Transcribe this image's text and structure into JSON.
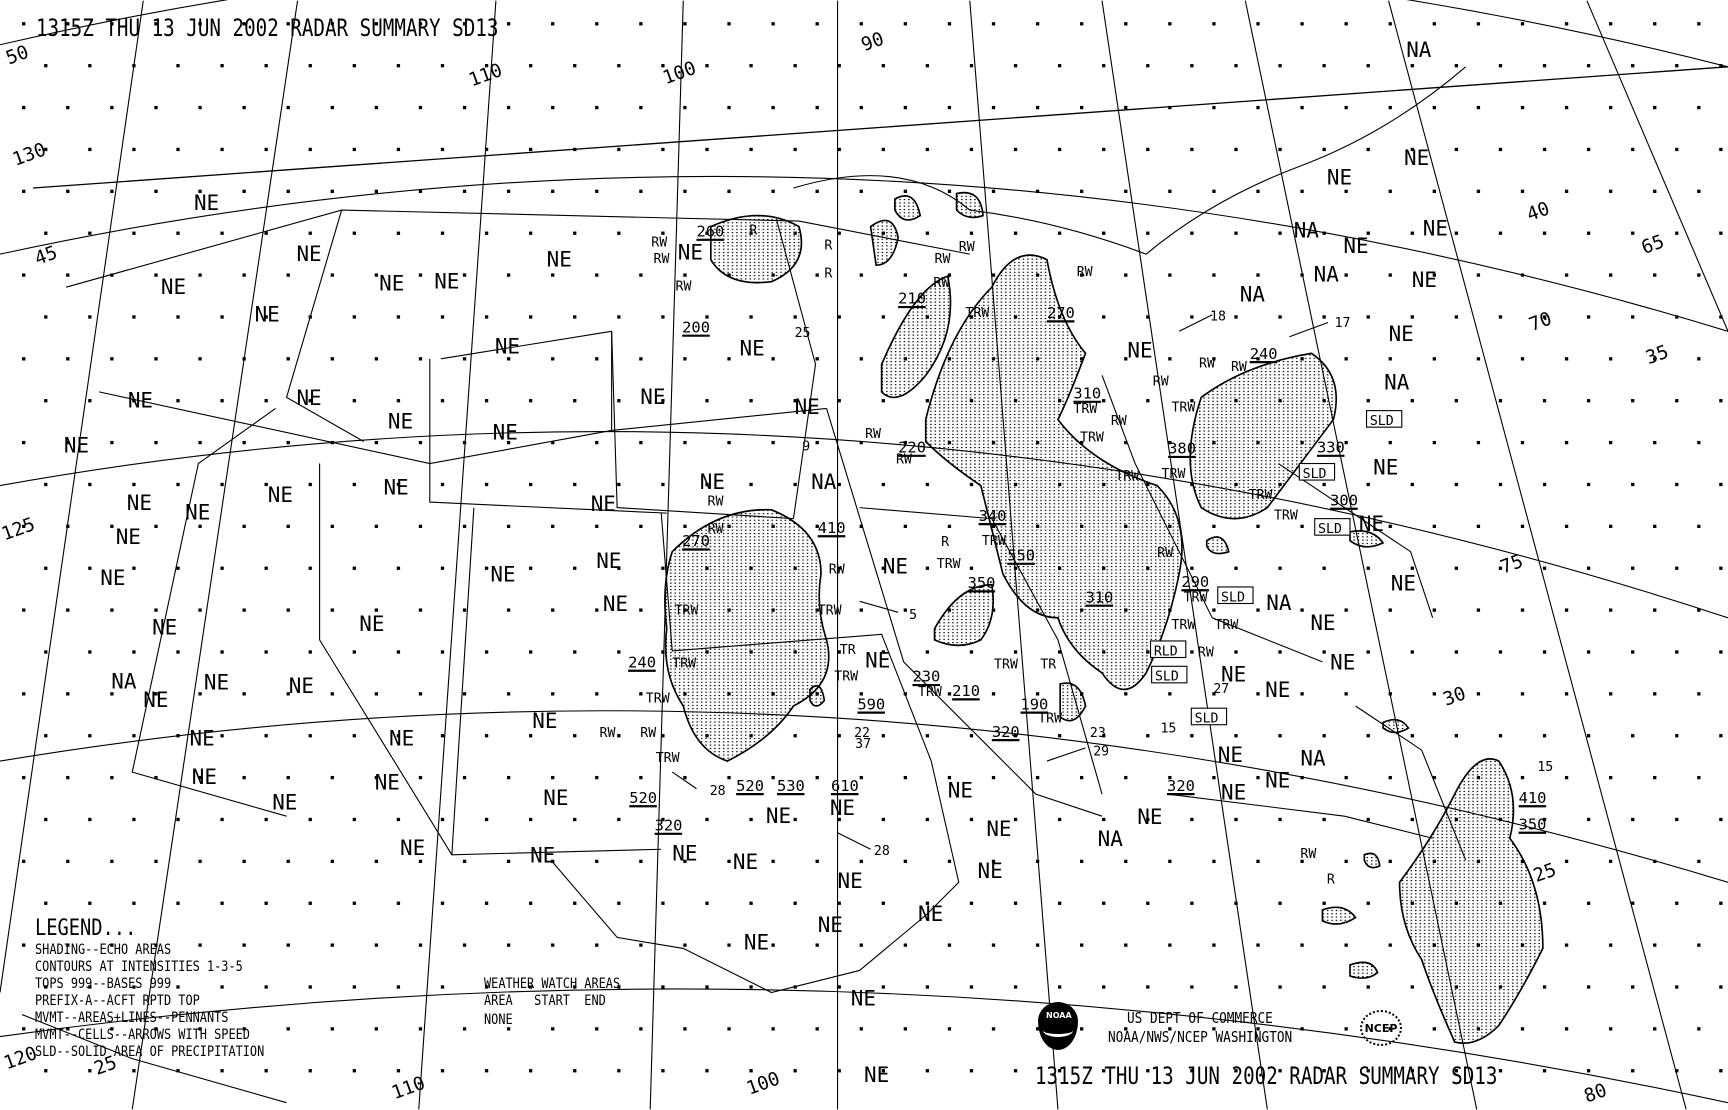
{
  "title_top": "1315Z THU 13 JUN 2002 RADAR SUMMARY SD13",
  "title_bottom": "1315Z THU 13 JUN 2002 RADAR SUMMARY SD13",
  "legend": {
    "heading": "LEGEND...",
    "lines": [
      "SHADING--ECHO AREAS",
      "CONTOURS AT INTENSITIES 1-3-5",
      "TOPS 999--BASES 999",
      "PREFIX-A--ACFT RPTD TOP",
      "MVMT--AREAS+LINES--PENNANTS",
      "MVMT--CELLS--ARROWS WITH SPEED",
      "SLD--SOLID AREA OF PRECIPITATION"
    ]
  },
  "watch": {
    "heading": "WEATHER WATCH AREAS",
    "columns": "AREA   START  END",
    "value": "NONE"
  },
  "credits": {
    "line1": "US DEPT OF COMMERCE",
    "line2": "NOAA/NWS/NCEP WASHINGTON",
    "noaa_logo": "NOAA",
    "ncep_logo": "NCEP"
  },
  "grid_labels": [
    "50",
    "130",
    "45",
    "110",
    "100",
    "90",
    "125",
    "120",
    "25",
    "110",
    "100",
    "40",
    "65",
    "70",
    "35",
    "75",
    "30",
    "25",
    "80"
  ],
  "status_labels": {
    "ne": "NE",
    "na": "NA"
  },
  "tops": [
    "260",
    "200",
    "210",
    "270",
    "220",
    "310",
    "240",
    "380",
    "330",
    "300",
    "340",
    "410",
    "270",
    "550",
    "350",
    "290",
    "310",
    "240",
    "230",
    "210",
    "590",
    "190",
    "320",
    "520",
    "320",
    "520",
    "530",
    "610",
    "320",
    "410",
    "350"
  ],
  "precip_labels": [
    "RW",
    "R",
    "RW",
    "R",
    "R",
    "RW",
    "RW",
    "RW",
    "TRW",
    "RW",
    "RW",
    "RW",
    "TRW",
    "RW",
    "TRW",
    "RW",
    "RW",
    "TRW",
    "TRW",
    "TRW",
    "TRW",
    "RW",
    "RW",
    "TRW",
    "TRW",
    "RW",
    "TRW",
    "TRW",
    "RW",
    "TRW",
    "TR",
    "TRW",
    "TRW",
    "TRW",
    "TRW",
    "RW",
    "RW",
    "TRW",
    "TR",
    "TRW",
    "TRW",
    "TRW",
    "TRW",
    "RW",
    "RW",
    "R",
    "R",
    "TRW",
    "RW",
    "RW"
  ],
  "boxed_labels": [
    "SLD",
    "SLD",
    "SLD",
    "SLD",
    "SLD",
    "SLD",
    "RLD"
  ],
  "speeds": [
    "25",
    "18",
    "17",
    "9",
    "5",
    "22",
    "37",
    "28",
    "28",
    "23",
    "29",
    "15",
    "15",
    "27"
  ],
  "colors": {
    "ink": "#000000",
    "background": "#ffffff"
  }
}
